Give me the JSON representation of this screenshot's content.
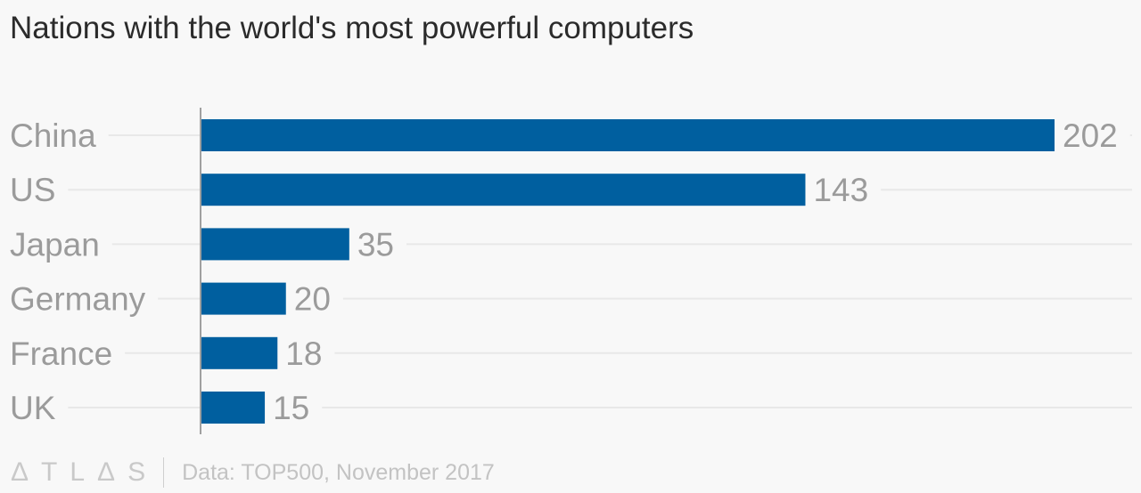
{
  "chart_data": {
    "type": "bar",
    "orientation": "horizontal",
    "title": "Nations with the world's most powerful computers",
    "categories": [
      "China",
      "US",
      "Japan",
      "Germany",
      "France",
      "UK"
    ],
    "values": [
      202,
      143,
      35,
      20,
      18,
      15
    ],
    "xlabel": "",
    "ylabel": "",
    "xlim": [
      0,
      202
    ],
    "grid": true,
    "bar_color": "#005f9f",
    "label_color": "#9b9b9b",
    "source": "Data: TOP500, November 2017",
    "logo": "ATLAS"
  }
}
